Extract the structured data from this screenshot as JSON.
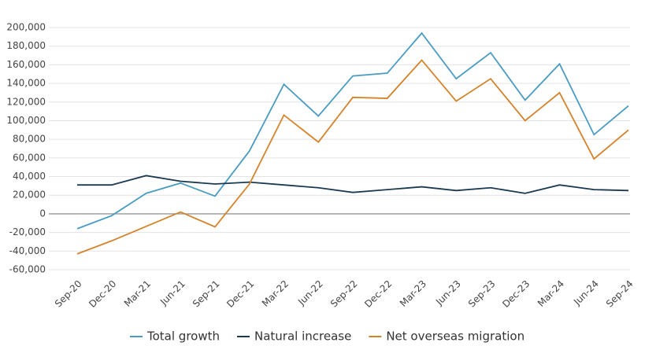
{
  "chart_data": {
    "type": "line",
    "categories": [
      "Sep-20",
      "Dec-20",
      "Mar-21",
      "Jun-21",
      "Sep-21",
      "Dec-21",
      "Mar-22",
      "Jun-22",
      "Sep-22",
      "Dec-22",
      "Mar-23",
      "Jun-23",
      "Sep-23",
      "Dec-23",
      "Mar-24",
      "Jun-24",
      "Sep-24"
    ],
    "series": [
      {
        "name": "Total growth",
        "color": "#4a9cc2",
        "values": [
          -16000,
          -2000,
          22000,
          33000,
          19000,
          67500,
          139000,
          105000,
          148000,
          151000,
          194000,
          145000,
          173000,
          122000,
          161000,
          85000,
          116000
        ]
      },
      {
        "name": "Natural increase",
        "color": "#1a3a52",
        "values": [
          31000,
          31000,
          41000,
          35000,
          32000,
          34000,
          31000,
          28000,
          23000,
          26000,
          29000,
          25000,
          28000,
          22000,
          31000,
          26000,
          25000
        ]
      },
      {
        "name": "Net overseas migration",
        "color": "#d4832a",
        "values": [
          -43000,
          -29000,
          -13500,
          2000,
          -14000,
          32000,
          106000,
          77000,
          125000,
          124000,
          165000,
          121000,
          145000,
          100000,
          130000,
          59000,
          90000
        ]
      }
    ],
    "ylim": [
      -60000,
      200000
    ],
    "yticks": [
      {
        "value": -60000,
        "label": "-60,000"
      },
      {
        "value": -40000,
        "label": "-40,000"
      },
      {
        "value": -20000,
        "label": "-20,000"
      },
      0,
      {
        "value": 20000,
        "label": "20,000"
      },
      {
        "value": 40000,
        "label": "40,000"
      },
      {
        "value": 60000,
        "label": "60,000"
      },
      {
        "value": 80000,
        "label": "80,000"
      },
      {
        "value": 100000,
        "label": "100,000"
      },
      {
        "value": 120000,
        "label": "120,000"
      },
      {
        "value": 140000,
        "label": "140,000"
      },
      {
        "value": 160000,
        "label": "160,000"
      },
      {
        "value": 180000,
        "label": "180,000"
      },
      {
        "value": 200000,
        "label": "200,000"
      }
    ],
    "grid": true
  }
}
